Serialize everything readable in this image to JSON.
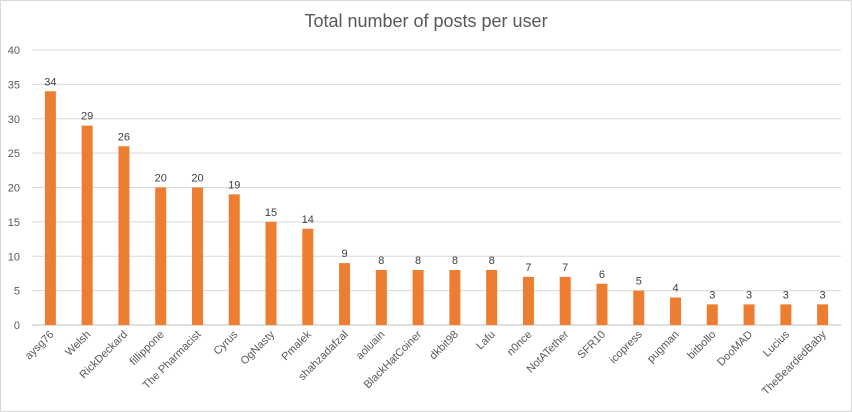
{
  "chart_data": {
    "type": "bar",
    "title": "Total number of posts per user",
    "xlabel": "",
    "ylabel": "",
    "ylim": [
      0,
      40
    ],
    "yticks": [
      0,
      5,
      10,
      15,
      20,
      25,
      30,
      35,
      40
    ],
    "grid": true,
    "legend": "none",
    "bar_color": "#ED7D31",
    "categories": [
      "aysg76",
      "Welsh",
      "RickDeckard",
      "fillippone",
      "The Pharmacist",
      "Cyrus",
      "OgNasty",
      "Pmalek",
      "shahzadafzal",
      "aoluain",
      "BlackHatCoiner",
      "dkbit98",
      "Lafu",
      "n0nce",
      "NotATether",
      "SFR10",
      "icopress",
      "pugman",
      "bitbollo",
      "DooMAD",
      "Lucius",
      "TheBeardedBaby"
    ],
    "values": [
      34,
      29,
      26,
      20,
      20,
      19,
      15,
      14,
      9,
      8,
      8,
      8,
      8,
      7,
      7,
      6,
      5,
      4,
      3,
      3,
      3,
      3
    ]
  }
}
